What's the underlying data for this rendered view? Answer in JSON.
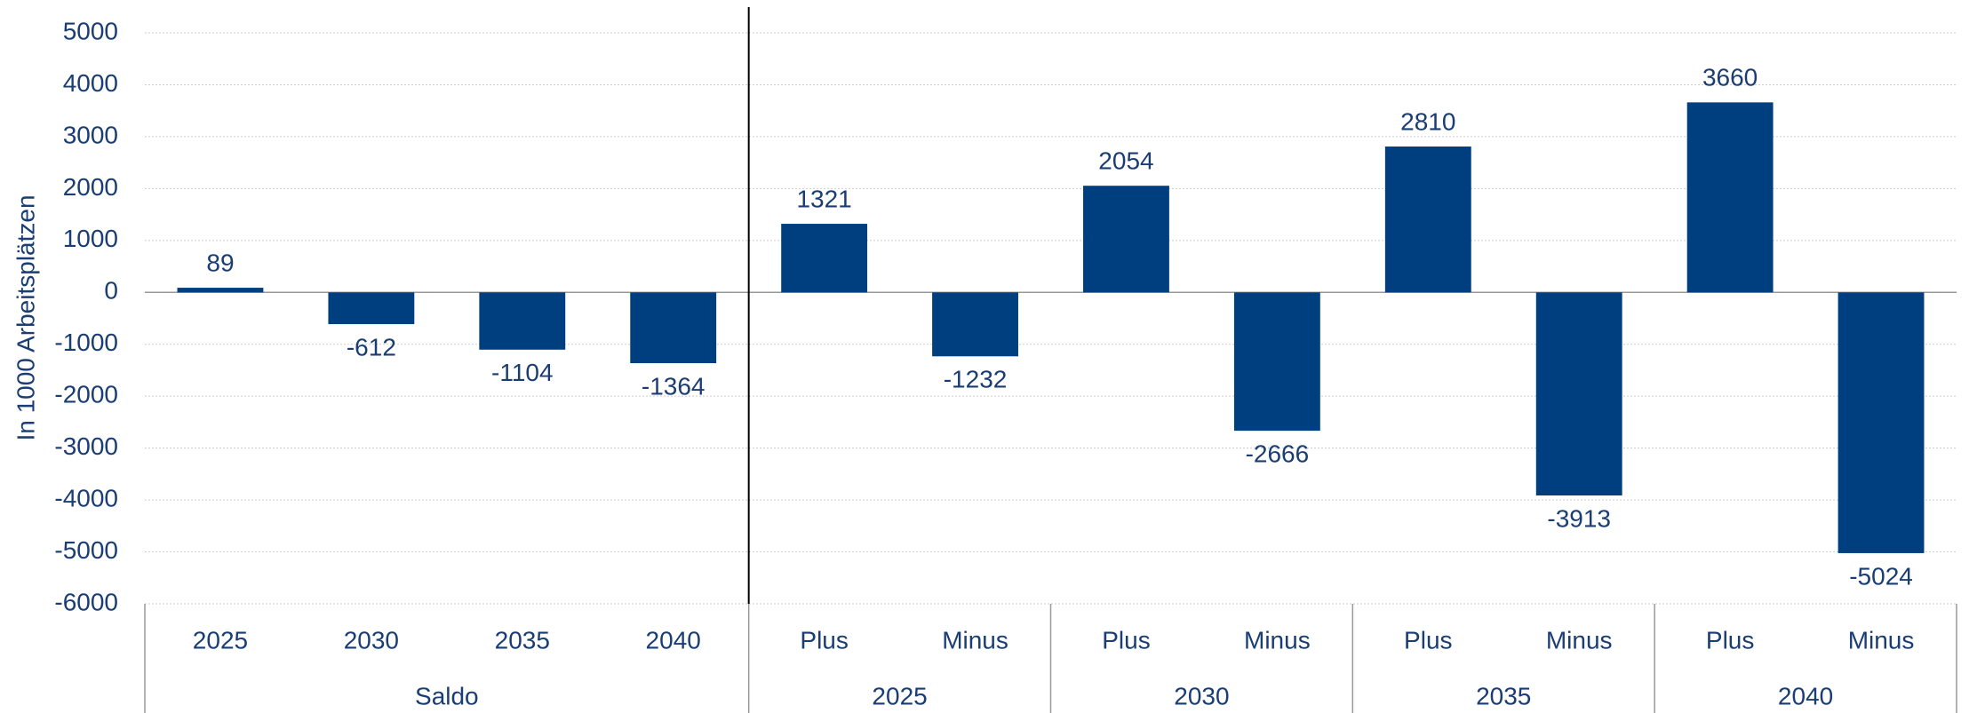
{
  "chart_data": {
    "type": "bar",
    "y_label": "In 1000 Arbeitsplätzen",
    "color": "#003f7f",
    "groups": [
      {
        "name": "Saldo",
        "categories": [
          "2025",
          "2030",
          "2035",
          "2040"
        ],
        "values": [
          89,
          -612,
          -1104,
          -1364
        ]
      },
      {
        "name": "2025",
        "categories": [
          "Plus",
          "Minus"
        ],
        "values": [
          1321,
          -1232
        ]
      },
      {
        "name": "2030",
        "categories": [
          "Plus",
          "Minus"
        ],
        "values": [
          2054,
          -2666
        ]
      },
      {
        "name": "2035",
        "categories": [
          "Plus",
          "Minus"
        ],
        "values": [
          2810,
          -3913
        ]
      },
      {
        "name": "2040",
        "categories": [
          "Plus",
          "Minus"
        ],
        "values": [
          3660,
          -5024
        ]
      }
    ],
    "ylim": [
      -6000,
      5000
    ],
    "yticks": [
      5000,
      4000,
      3000,
      2000,
      1000,
      0,
      -1000,
      -2000,
      -3000,
      -4000,
      -5000,
      -6000
    ],
    "grid": true
  }
}
